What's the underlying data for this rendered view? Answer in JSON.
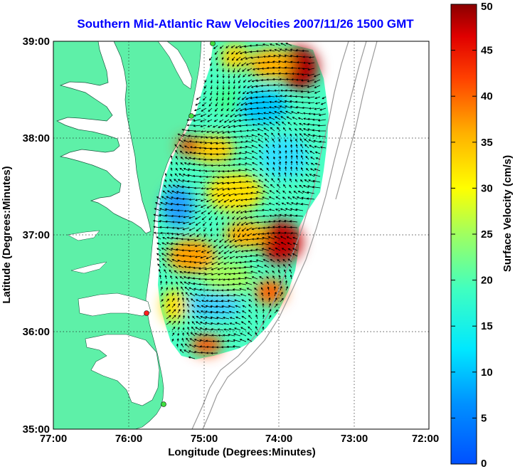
{
  "title": "Southern Mid-Atlantic Raw Velocities 2007/11/26 1500 GMT",
  "map": {
    "xlabel": "Longitude (Degrees:Minutes)",
    "ylabel": "Latitude (Degrees:Minutes)",
    "x_ticks": [
      "77:00",
      "76:00",
      "75:00",
      "74:00",
      "73:00",
      "72:00"
    ],
    "y_ticks": [
      "39:00",
      "38:00",
      "37:00",
      "36:00",
      "35:00"
    ],
    "land_color": "#5ef0a8",
    "grid": "dotted"
  },
  "colorbar": {
    "label": "Surface Velocity (cm/s)",
    "ticks": [
      "50",
      "45",
      "40",
      "35",
      "30",
      "25",
      "20",
      "15",
      "10",
      "5",
      "0"
    ],
    "min": 0,
    "max": 50,
    "colormap": "jet"
  }
}
